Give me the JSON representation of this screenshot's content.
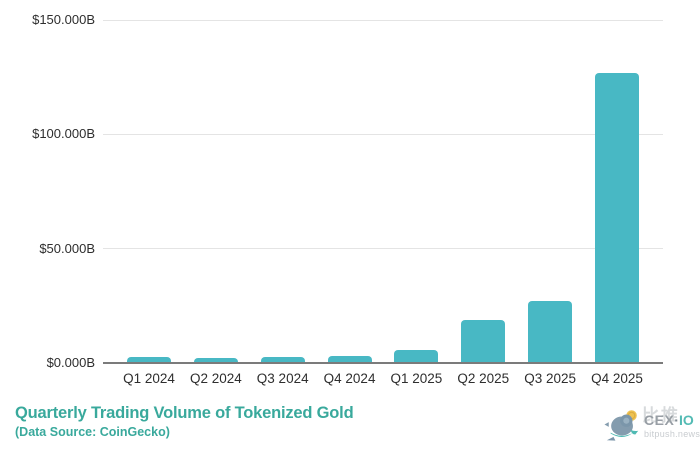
{
  "chart_data": {
    "type": "bar",
    "title": "Quarterly Trading Volume of Tokenized Gold",
    "subtitle": "(Data Source: CoinGecko)",
    "categories": [
      "Q1 2024",
      "Q2 2024",
      "Q3 2024",
      "Q4 2024",
      "Q1 2025",
      "Q2 2025",
      "Q3 2025",
      "Q4 2025"
    ],
    "values": [
      2.5,
      2.2,
      2.5,
      3.0,
      5.5,
      19,
      27,
      127
    ],
    "unit": "USD billions",
    "xlabel": "",
    "ylabel": "",
    "ylim": [
      0,
      150
    ],
    "yticks": [
      {
        "value": 150,
        "label": "$150.000B"
      },
      {
        "value": 100,
        "label": "$100.000B"
      },
      {
        "value": 50,
        "label": "$50.000B"
      },
      {
        "value": 0,
        "label": "$0.000B"
      }
    ],
    "grid": true,
    "legend_position": "none",
    "bar_color": "#48b8c4"
  },
  "watermark": {
    "chinese": "比推",
    "cex": "CEX",
    "dot": "·",
    "io": "IO",
    "site": "bitpush.news"
  },
  "colors": {
    "bar": "#48b8c4",
    "title_text": "#39a99c",
    "axis_text": "#2e2e2e",
    "gridline": "#e4e4e4",
    "axis_line": "#7b7b7b",
    "coin_gold": "#edbc3f",
    "bird_body": "#7792a6",
    "bird_teal": "#3db3ab"
  }
}
